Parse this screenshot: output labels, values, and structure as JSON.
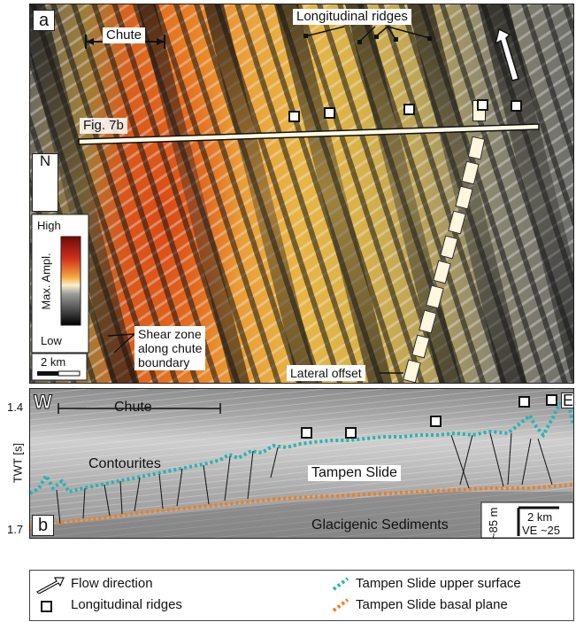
{
  "panel_a": {
    "label": "a",
    "chute_label": "Chute",
    "ridges_label": "Longitudinal ridges",
    "fig_ref": "Fig. 7b",
    "north_label": "N",
    "colorbar": {
      "high": "High",
      "title": "Max. Ampl.",
      "low": "Low"
    },
    "shear_zone_label": "Shear zone\nalong chute\nboundary",
    "scale_label": "2 km",
    "lateral_offset_label": "Lateral offset"
  },
  "panel_b": {
    "label": "b",
    "w_label": "W",
    "e_label": "E",
    "chute_label": "Chute",
    "contourites_label": "Contourites",
    "tampen_label": "Tampen Slide",
    "glacigenic_label": "Glacigenic Sediments",
    "y_axis_label": "TWT [s]",
    "y_top_tick": "1.4",
    "y_bottom_tick": "1.7",
    "vertical_scale_label": "~85 m",
    "horizontal_scale_label": "2 km",
    "ve_label": "VE ~25"
  },
  "legend": {
    "flow": "Flow direction",
    "ridges": "Longitudinal ridges",
    "upper": "Tampen Slide upper surface",
    "basal": "Tampen Slide basal plane"
  },
  "colors": {
    "upper_surface": "#2ab3b3",
    "basal_plane": "#ef7f1e"
  }
}
